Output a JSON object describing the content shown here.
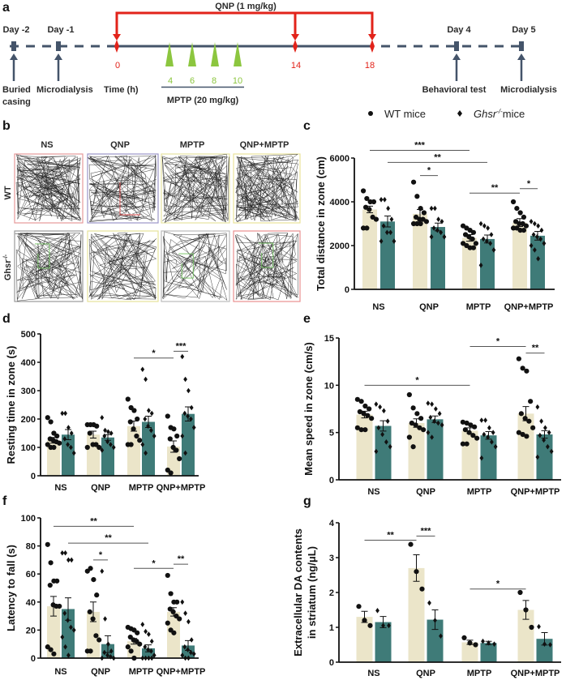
{
  "colors": {
    "wt_bar": "#ebe5c9",
    "ko_bar": "#3f7b78",
    "qnp": "#e2231a",
    "mptp": "#8cc63f",
    "timeline": "#44546a"
  },
  "panel_a": {
    "label": "a",
    "qnp_label": "QNP (1 mg/kg)",
    "days": [
      "Day -2",
      "Day -1",
      "Day 4",
      "Day 5"
    ],
    "events": {
      "buried_1": "Buried",
      "buried_2": "casing",
      "microdialysis_1": "Microdialysis",
      "time": "Time (h)",
      "behavioral": "Behavioral test",
      "microdialysis_2": "Microdialysis"
    },
    "qnp_times": [
      "0",
      "14",
      "18"
    ],
    "mptp_times": [
      "4",
      "6",
      "8",
      "10"
    ],
    "mptp_label": "MPTP (20 mg/kg)"
  },
  "legend": {
    "wt": "WT mice",
    "ko_gene": "Ghsr",
    "ko_sup": "-/-",
    "ko_suffix": "mice"
  },
  "panel_b": {
    "label": "b",
    "columns": [
      "NS",
      "QNP",
      "MPTP",
      "QNP+MPTP"
    ],
    "row_wt": "WT",
    "row_ko_gene": "Ghsr",
    "row_ko_sup": "-/-"
  },
  "chart_data": [
    {
      "panel": "c",
      "type": "bar",
      "categories": [
        "NS",
        "QNP",
        "MPTP",
        "QNP+MPTP"
      ],
      "ylabel": "Total distance in zone (cm)",
      "ylim": [
        0,
        6000
      ],
      "yticks": [
        "0",
        "2000",
        "4000",
        "6000"
      ],
      "series": [
        {
          "name": "WT mice",
          "means": [
            3650,
            3450,
            2350,
            3050
          ],
          "sem": [
            150,
            200,
            150,
            180
          ],
          "points": [
            [
              4500,
              4150,
              4000,
              4000,
              3750,
              3650,
              3300,
              3200,
              2800,
              2800
            ],
            [
              4900,
              4250,
              3700,
              3500,
              3300,
              3200,
              3200,
              3100,
              3000,
              3000,
              3000
            ],
            [
              2900,
              2800,
              2700,
              2600,
              2500,
              2400,
              2300,
              2100,
              2100,
              2000,
              1900,
              1900
            ],
            [
              4000,
              3700,
              3500,
              3300,
              3100,
              3000,
              3000,
              2900,
              2800,
              2800,
              2700,
              2700
            ]
          ]
        },
        {
          "name": "Ghsr-/- mice",
          "means": [
            3100,
            2850,
            2300,
            2450
          ],
          "sem": [
            250,
            180,
            180,
            200
          ],
          "points": [
            [
              4100,
              4100,
              3700,
              3200,
              2900,
              2600,
              2600,
              2200,
              2200
            ],
            [
              3700,
              3700,
              3200,
              3100,
              2800,
              2700,
              2600,
              2400,
              2400
            ],
            [
              3000,
              2900,
              2800,
              2500,
              2300,
              2200,
              2100,
              1800,
              1100
            ],
            [
              3100,
              3000,
              2900,
              2700,
              2500,
              2400,
              2300,
              2100,
              2000,
              1800,
              1400
            ]
          ]
        }
      ],
      "significance": [
        {
          "from": 0,
          "to": 4,
          "y": 6350,
          "label": "***"
        },
        {
          "from": 1,
          "to": 5,
          "y": 5800,
          "label": "**"
        },
        {
          "from": 2,
          "to": 3,
          "y": 5200,
          "label": "*"
        },
        {
          "from": 4,
          "to": 6,
          "y": 4400,
          "label": "**"
        },
        {
          "from": 6,
          "to": 7,
          "y": 4600,
          "label": "*"
        }
      ]
    },
    {
      "panel": "d",
      "type": "bar",
      "categories": [
        "NS",
        "QNP",
        "MPTP",
        "QNP+MPTP"
      ],
      "ylabel": "Resting time in zone (s)",
      "ylim": [
        0,
        500
      ],
      "yticks": [
        "0",
        "100",
        "200",
        "300",
        "400",
        "500"
      ],
      "series": [
        {
          "name": "WT mice",
          "means": [
            125,
            145,
            175,
            103
          ],
          "sem": [
            10,
            12,
            18,
            20
          ],
          "points": [
            [
              205,
              190,
              150,
              140,
              130,
              125,
              120,
              115,
              110,
              100,
              100
            ],
            [
              180,
              180,
              180,
              175,
              150,
              110,
              110,
              100,
              100
            ],
            [
              270,
              240,
              230,
              200,
              190,
              165,
              140,
              125,
              110,
              110
            ],
            [
              210,
              170,
              165,
              140,
              130,
              100,
              90,
              60,
              20,
              10
            ]
          ]
        },
        {
          "name": "Ghsr-/- mice",
          "means": [
            145,
            135,
            190,
            218
          ],
          "sem": [
            18,
            10,
            20,
            25
          ],
          "points": [
            [
              220,
              220,
              170,
              150,
              130,
              110,
              100,
              80
            ],
            [
              205,
              160,
              155,
              150,
              140,
              120,
              110,
              100,
              90
            ],
            [
              375,
              340,
              230,
              220,
              200,
              175,
              160,
              140,
              110,
              80
            ],
            [
              420,
              340,
              300,
              240,
              220,
              210,
              200,
              170,
              140,
              80
            ]
          ]
        }
      ],
      "significance": [
        {
          "from": 4,
          "to": 6,
          "y": 415,
          "label": "*"
        },
        {
          "from": 6,
          "to": 7,
          "y": 439,
          "label": "***"
        }
      ]
    },
    {
      "panel": "e",
      "type": "bar",
      "categories": [
        "NS",
        "QNP",
        "MPTP",
        "QNP+MPTP"
      ],
      "ylabel": "Mean speed in zone (cm/s)",
      "ylim": [
        0,
        15
      ],
      "yticks": [
        "0",
        "5",
        "10",
        "15"
      ],
      "series": [
        {
          "name": "WT mice",
          "means": [
            6.9,
            6.0,
            5.2,
            7.0
          ],
          "sem": [
            0.35,
            0.45,
            0.3,
            0.75
          ],
          "points": [
            [
              8.5,
              8.3,
              7.8,
              7.5,
              7.2,
              7.0,
              6.8,
              6.5,
              5.5,
              5.3,
              5.3
            ],
            [
              9.0,
              7.6,
              7.0,
              6.5,
              6.0,
              5.8,
              5.5,
              5.3,
              4.5,
              3.5
            ],
            [
              6.1,
              6.0,
              5.8,
              5.6,
              5.3,
              5.0,
              4.7,
              4.4,
              3.8,
              3.8
            ],
            [
              12.8,
              11.8,
              11.5,
              8.3,
              7.0,
              6.5,
              6.2,
              5.5,
              5.0,
              4.8,
              4.6
            ]
          ]
        },
        {
          "name": "Ghsr-/- mice",
          "means": [
            5.7,
            6.4,
            4.7,
            4.8
          ],
          "sem": [
            0.55,
            0.35,
            0.4,
            0.4
          ],
          "points": [
            [
              8.0,
              7.7,
              7.3,
              6.2,
              5.5,
              4.8,
              4.0,
              3.5,
              3.0
            ],
            [
              8.1,
              8.0,
              7.5,
              7.0,
              6.6,
              6.2,
              6.0,
              5.8,
              5.0,
              4.5
            ],
            [
              6.3,
              6.3,
              5.5,
              5.0,
              4.8,
              4.5,
              4.0,
              3.5,
              2.3
            ],
            [
              7.7,
              6.2,
              5.5,
              5.0,
              4.7,
              4.2,
              3.5,
              3.0,
              2.4
            ]
          ]
        }
      ],
      "significance": [
        {
          "from": 0,
          "to": 4,
          "y": 10.0,
          "label": "*"
        },
        {
          "from": 4,
          "to": 6,
          "y": 14.1,
          "label": "*"
        },
        {
          "from": 6,
          "to": 7,
          "y": 13.4,
          "label": "**"
        }
      ]
    },
    {
      "panel": "f",
      "type": "bar",
      "categories": [
        "NS",
        "QNP",
        "MPTP",
        "QNP+MPTP"
      ],
      "ylabel": "Latency to fall (s)",
      "ylim": [
        0,
        100
      ],
      "yticks": [
        "0",
        "20",
        "40",
        "60",
        "80",
        "100"
      ],
      "series": [
        {
          "name": "WT mice",
          "means": [
            37,
            33,
            12,
            33
          ],
          "sem": [
            7,
            7,
            2,
            3
          ],
          "points": [
            [
              81,
              68,
              55,
              55,
              52,
              38,
              37,
              37,
              8,
              6,
              3
            ],
            [
              62,
              64,
              56,
              45,
              33,
              28,
              16,
              13,
              5,
              5
            ],
            [
              22,
              21,
              20,
              18,
              15,
              13,
              12,
              10,
              8,
              5,
              0
            ],
            [
              59,
              46,
              40,
              40,
              35,
              33,
              30,
              28,
              25,
              20,
              18
            ]
          ]
        },
        {
          "name": "Ghsr-/- mice",
          "means": [
            35,
            10,
            7,
            9
          ],
          "sem": [
            8,
            6,
            2.5,
            3.5
          ],
          "points": [
            [
              75,
              75,
              70,
              70,
              32,
              27,
              22,
              20,
              15,
              8,
              2
            ],
            [
              62,
              28,
              10,
              5,
              4,
              2,
              1,
              0,
              0
            ],
            [
              24,
              19,
              17,
              12,
              8,
              6,
              5,
              2,
              0,
              0,
              0,
              0
            ],
            [
              40,
              32,
              26,
              13,
              8,
              6,
              4,
              3,
              2,
              0,
              0
            ]
          ]
        }
      ],
      "significance": [
        {
          "from": 0,
          "to": 4,
          "y": 94,
          "label": "**"
        },
        {
          "from": 1,
          "to": 5,
          "y": 82,
          "label": "**"
        },
        {
          "from": 2,
          "to": 3,
          "y": 70,
          "label": "*"
        },
        {
          "from": 4,
          "to": 6,
          "y": 64,
          "label": "*"
        },
        {
          "from": 6,
          "to": 7,
          "y": 67,
          "label": "**"
        }
      ]
    },
    {
      "panel": "g",
      "type": "bar",
      "categories": [
        "NS",
        "QNP",
        "MPTP",
        "QNP+MPTP"
      ],
      "ylabel": "Extracellular DA contents",
      "ylabel2": "in striatum (ng/μL)",
      "ylim": [
        0,
        4
      ],
      "yticks": [
        "0",
        "1",
        "2",
        "3",
        "4"
      ],
      "series": [
        {
          "name": "WT mice",
          "means": [
            1.3,
            2.7,
            0.57,
            1.5
          ],
          "sem": [
            0.16,
            0.38,
            0.06,
            0.27
          ],
          "points": [
            [
              1.6,
              1.2,
              1.05
            ],
            [
              3.38,
              2.6,
              2.1
            ],
            [
              0.7,
              0.55,
              0.5
            ],
            [
              2.0,
              1.5,
              1.0
            ]
          ]
        },
        {
          "name": "Ghsr-/- mice",
          "means": [
            1.15,
            1.22,
            0.55,
            0.67
          ],
          "sem": [
            0.16,
            0.28,
            0.05,
            0.18
          ],
          "points": [
            [
              1.48,
              1.05,
              1.05
            ],
            [
              1.7,
              1.2,
              0.75
            ],
            [
              0.6,
              0.55,
              0.52
            ],
            [
              1.02,
              0.52,
              0.5
            ]
          ]
        }
      ],
      "significance": [
        {
          "from": 0,
          "to": 2,
          "y": 3.5,
          "label": "**"
        },
        {
          "from": 2,
          "to": 3,
          "y": 3.62,
          "label": "***"
        },
        {
          "from": 4,
          "to": 6,
          "y": 2.1,
          "label": "*"
        }
      ]
    }
  ]
}
